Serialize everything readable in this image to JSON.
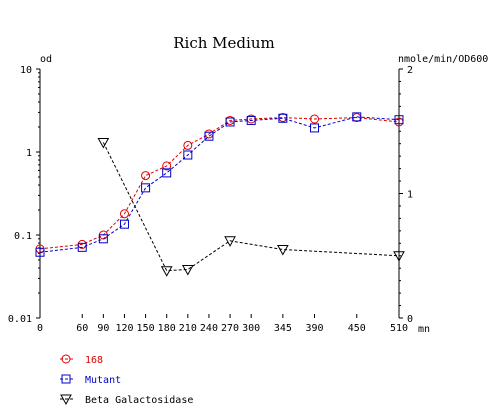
{
  "chart_data": {
    "type": "line",
    "title": "Rich Medium",
    "ylabel_left": "od",
    "ylabel_right": "nmole/min/OD600",
    "xlabel": "mn",
    "x_ticks": [
      0,
      60,
      90,
      120,
      150,
      180,
      210,
      240,
      270,
      300,
      345,
      390,
      450,
      510
    ],
    "xlim": [
      0,
      510
    ],
    "y_left_scale": "log",
    "y_left_ticks": [
      0.01,
      0.1,
      1,
      10
    ],
    "y_left_tick_labels": [
      "0.01",
      "0.1",
      "1",
      "10"
    ],
    "ylim_left": [
      0.01,
      10
    ],
    "y_right_ticks": [
      0,
      1,
      2
    ],
    "y_right_tick_labels": [
      "0",
      "1",
      "2"
    ],
    "ylim_right": [
      0,
      2
    ],
    "grid": false,
    "legend_position": "bottom-left",
    "series": [
      {
        "name": "168",
        "axis": "left",
        "marker": "circle",
        "color": "#e00000",
        "x": [
          0,
          60,
          90,
          120,
          150,
          180,
          210,
          240,
          270,
          300,
          345,
          390,
          450,
          510
        ],
        "y": [
          0.068,
          0.077,
          0.1,
          0.18,
          0.52,
          0.68,
          1.2,
          1.65,
          2.4,
          2.5,
          2.6,
          2.5,
          2.6,
          2.3
        ]
      },
      {
        "name": "Mutant",
        "axis": "left",
        "marker": "square",
        "color": "#0000cc",
        "x": [
          0,
          60,
          90,
          120,
          150,
          180,
          210,
          240,
          270,
          300,
          345,
          390,
          450,
          510
        ],
        "y": [
          0.062,
          0.071,
          0.09,
          0.135,
          0.37,
          0.56,
          0.92,
          1.55,
          2.3,
          2.4,
          2.55,
          1.95,
          2.65,
          2.45
        ]
      },
      {
        "name": "Beta Galactosidase",
        "axis": "right",
        "marker": "triangle-down",
        "color": "#000000",
        "x": [
          90,
          180,
          210,
          270,
          345,
          510
        ],
        "y": [
          1.41,
          0.38,
          0.39,
          0.62,
          0.55,
          0.5
        ]
      }
    ]
  }
}
